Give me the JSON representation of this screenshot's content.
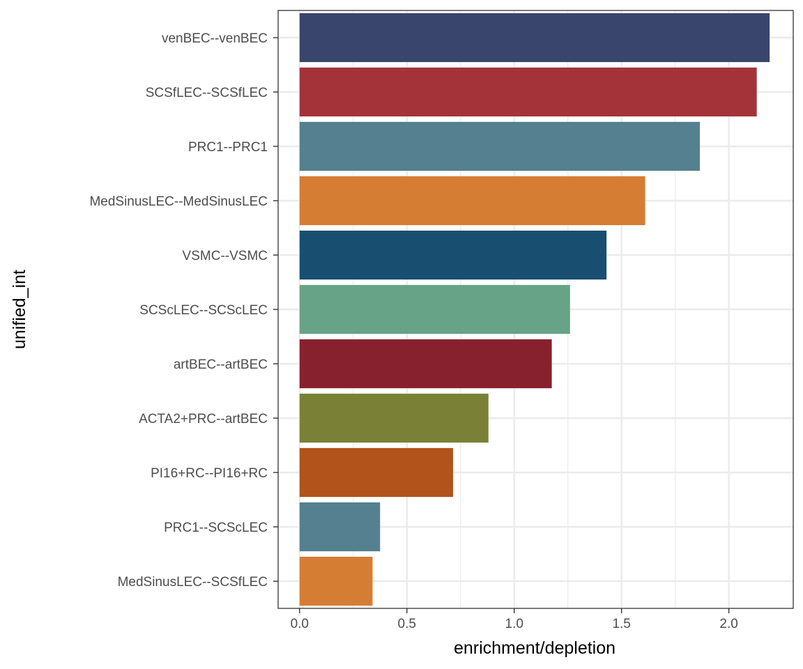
{
  "chart_data": {
    "type": "bar",
    "orientation": "horizontal",
    "title": "",
    "xlabel": "enrichment/depletion",
    "ylabel": "unified_int",
    "xlim": [
      -0.1,
      2.3
    ],
    "xticks": [
      0.0,
      0.5,
      1.0,
      1.5,
      2.0
    ],
    "xtick_labels": [
      "0.0",
      "0.5",
      "1.0",
      "1.5",
      "2.0"
    ],
    "grid": true,
    "legend": "none",
    "categories": [
      "venBEC--venBEC",
      "SCSfLEC--SCSfLEC",
      "PRC1--PRC1",
      "MedSinusLEC--MedSinusLEC",
      "VSMC--VSMC",
      "SCScLEC--SCScLEC",
      "artBEC--artBEC",
      "ACTA2+PRC--artBEC",
      "PI16+RC--PI16+RC",
      "PRC1--SCScLEC",
      "MedSinusLEC--SCSfLEC"
    ],
    "values": [
      2.19,
      2.13,
      1.865,
      1.61,
      1.43,
      1.26,
      1.175,
      0.88,
      0.715,
      0.375,
      0.34
    ],
    "colors": [
      "#3a456d",
      "#a33339",
      "#54808f",
      "#d67d34",
      "#184f70",
      "#67a386",
      "#88212e",
      "#7a8137",
      "#b1531b",
      "#54808f",
      "#d67d34"
    ]
  }
}
